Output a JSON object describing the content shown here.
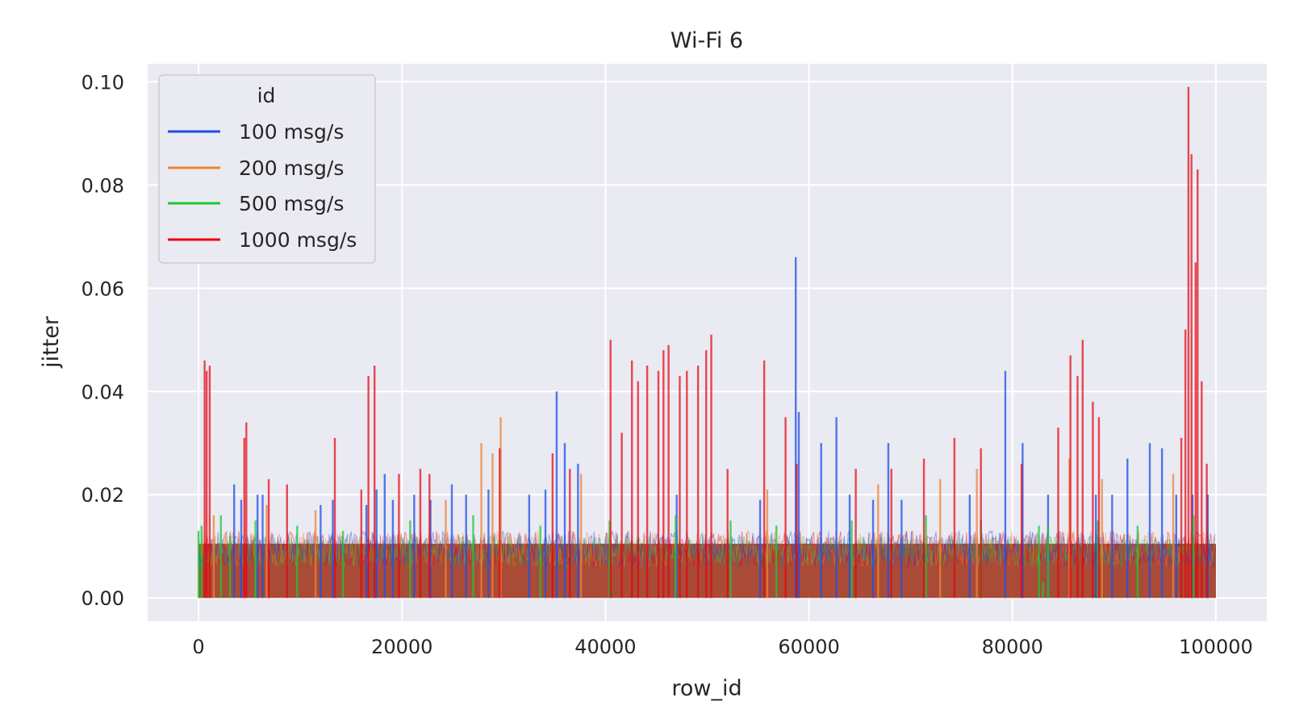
{
  "chart_data": {
    "type": "line",
    "title": "Wi-Fi 6",
    "xlabel": "row_id",
    "ylabel": "jitter",
    "xlim": [
      -5000,
      105000
    ],
    "ylim": [
      -0.0045,
      0.1035
    ],
    "x_ticks": [
      0,
      20000,
      40000,
      60000,
      80000,
      100000
    ],
    "x_tick_labels": [
      "0",
      "20000",
      "40000",
      "60000",
      "80000",
      "100000"
    ],
    "y_ticks": [
      0.0,
      0.02,
      0.04,
      0.06,
      0.08,
      0.1
    ],
    "y_tick_labels": [
      "0.00",
      "0.02",
      "0.04",
      "0.06",
      "0.08",
      "0.10"
    ],
    "grid": true,
    "background": "#eaeaf2",
    "legend": {
      "title": "id",
      "placement": "top-left",
      "entries": [
        "100 msg/s",
        "200 msg/s",
        "500 msg/s",
        "1000 msg/s"
      ]
    },
    "baseline_band": {
      "color": "#a5422c",
      "low": 0.0,
      "high": 0.0105
    },
    "series": [
      {
        "name": "100 msg/s",
        "color": "#1f4ee6",
        "x": [
          3500,
          4200,
          5800,
          6300,
          12000,
          13200,
          16500,
          17500,
          18300,
          19100,
          21200,
          22800,
          24900,
          26300,
          28500,
          32500,
          34100,
          35200,
          36000,
          37300,
          47000,
          55200,
          58700,
          59000,
          61200,
          62700,
          64000,
          66300,
          67800,
          69100,
          75800,
          79300,
          81000,
          83500,
          88200,
          89800,
          91300,
          93500,
          94700,
          96100,
          97700,
          99200
        ],
        "y": [
          0.022,
          0.019,
          0.02,
          0.02,
          0.018,
          0.019,
          0.018,
          0.021,
          0.024,
          0.019,
          0.02,
          0.019,
          0.022,
          0.02,
          0.021,
          0.02,
          0.021,
          0.04,
          0.03,
          0.026,
          0.02,
          0.019,
          0.066,
          0.036,
          0.03,
          0.035,
          0.02,
          0.019,
          0.03,
          0.019,
          0.02,
          0.044,
          0.03,
          0.02,
          0.02,
          0.02,
          0.027,
          0.03,
          0.029,
          0.02,
          0.02,
          0.02
        ]
      },
      {
        "name": "200 msg/s",
        "color": "#ef8332",
        "x": [
          1500,
          6700,
          11500,
          24300,
          27800,
          28900,
          29700,
          37600,
          55900,
          66800,
          72900,
          76500,
          85600,
          88800,
          95800
        ],
        "y": [
          0.016,
          0.018,
          0.017,
          0.019,
          0.03,
          0.028,
          0.035,
          0.024,
          0.021,
          0.022,
          0.023,
          0.025,
          0.027,
          0.023,
          0.024
        ]
      },
      {
        "name": "500 msg/s",
        "color": "#1ac938",
        "x": [
          0,
          300,
          2200,
          3100,
          5600,
          9700,
          14200,
          20800,
          27000,
          33600,
          40400,
          46900,
          52300,
          56800,
          64200,
          71500,
          76900,
          82600,
          83000,
          83300,
          83500,
          88400,
          92300,
          97800
        ],
        "y": [
          0.013,
          0.014,
          0.016,
          0.012,
          0.015,
          0.014,
          0.013,
          0.015,
          0.016,
          0.014,
          0.015,
          0.016,
          0.015,
          0.014,
          0.015,
          0.016,
          0.015,
          0.014,
          0.003,
          0.0,
          0.014,
          0.015,
          0.014,
          0.016
        ]
      },
      {
        "name": "1000 msg/s",
        "color": "#e8000b",
        "x": [
          600,
          800,
          1100,
          4500,
          4700,
          6900,
          8700,
          13400,
          16000,
          16700,
          17300,
          19700,
          21800,
          22700,
          29600,
          34800,
          36500,
          40500,
          41600,
          42600,
          43200,
          44100,
          45200,
          45700,
          46200,
          47300,
          48000,
          49100,
          49900,
          50400,
          52000,
          55600,
          57700,
          58800,
          64600,
          68100,
          71300,
          74300,
          76900,
          80900,
          84500,
          85700,
          86400,
          86900,
          87900,
          88500,
          96600,
          97000,
          97300,
          97600,
          98000,
          98200,
          98600,
          99100
        ],
        "y": [
          0.046,
          0.044,
          0.045,
          0.031,
          0.034,
          0.023,
          0.022,
          0.031,
          0.021,
          0.043,
          0.045,
          0.024,
          0.025,
          0.024,
          0.029,
          0.028,
          0.025,
          0.05,
          0.032,
          0.046,
          0.042,
          0.045,
          0.044,
          0.048,
          0.049,
          0.043,
          0.044,
          0.045,
          0.048,
          0.051,
          0.025,
          0.046,
          0.035,
          0.026,
          0.025,
          0.025,
          0.027,
          0.031,
          0.029,
          0.026,
          0.033,
          0.047,
          0.043,
          0.05,
          0.038,
          0.035,
          0.031,
          0.052,
          0.099,
          0.086,
          0.065,
          0.083,
          0.042,
          0.026
        ]
      }
    ]
  }
}
